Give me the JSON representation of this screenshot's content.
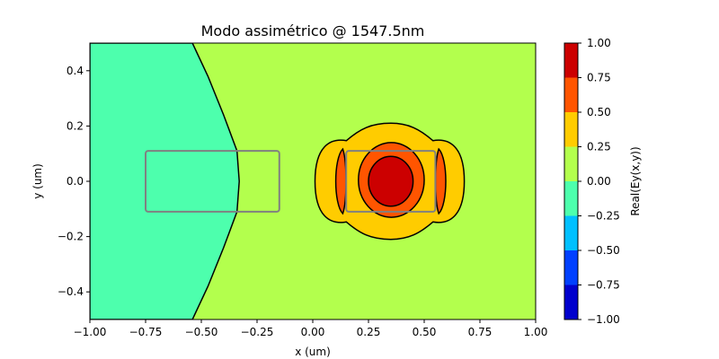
{
  "chart_data": {
    "type": "heatmap",
    "subtype": "filled-contour",
    "title": "Modo assimétrico @ 1547.5nm",
    "xlabel": "x (um)",
    "ylabel": "y (um)",
    "xlim": [
      -1.0,
      1.0
    ],
    "ylim": [
      -0.5,
      0.5
    ],
    "xticks": [
      "−1.00",
      "−0.75",
      "−0.50",
      "−0.25",
      "0.00",
      "0.25",
      "0.50",
      "0.75",
      "1.00"
    ],
    "xtick_values": [
      -1.0,
      -0.75,
      -0.5,
      -0.25,
      0.0,
      0.25,
      0.5,
      0.75,
      1.0
    ],
    "yticks": [
      "−0.4",
      "−0.2",
      "0.0",
      "0.2",
      "0.4"
    ],
    "ytick_values": [
      -0.4,
      -0.2,
      0.0,
      0.2,
      0.4
    ],
    "colorbar": {
      "label": "Real(Ey(x,y))",
      "levels": [
        -1.0,
        -0.75,
        -0.5,
        -0.25,
        0.0,
        0.25,
        0.5,
        0.75,
        1.0
      ],
      "tick_labels": [
        "−1.00",
        "−0.75",
        "−0.50",
        "−0.25",
        "0.00",
        "0.25",
        "0.50",
        "0.75",
        "1.00"
      ],
      "colors": [
        "#0000cd",
        "#0040ff",
        "#00c0ff",
        "#4dffad",
        "#b3ff4d",
        "#ffcc00",
        "#ff5500",
        "#cc0000"
      ]
    },
    "background_color": "#b3ff4d",
    "regions": [
      {
        "name": "left-negative-region",
        "level_range": [
          -0.25,
          0.0
        ],
        "color": "#4dffad",
        "boundary": [
          [
            -0.54,
            0.5
          ],
          [
            -0.47,
            0.38
          ],
          [
            -0.4,
            0.24
          ],
          [
            -0.34,
            0.11
          ],
          [
            -0.33,
            0.0
          ],
          [
            -0.34,
            -0.11
          ],
          [
            -0.4,
            -0.24
          ],
          [
            -0.47,
            -0.38
          ],
          [
            -0.54,
            -0.5
          ]
        ]
      },
      {
        "name": "outer-lobe",
        "level_range": [
          0.25,
          0.5
        ],
        "color": "#ffcc00",
        "center": [
          0.35,
          0.0
        ],
        "extent_x": [
          0.01,
          0.68
        ],
        "extent_y": [
          -0.21,
          0.21
        ]
      },
      {
        "name": "side-lobes",
        "level_range": [
          0.5,
          0.75
        ],
        "color": "#ff5500",
        "centers": [
          [
            0.125,
            0.0
          ],
          [
            0.575,
            0.0
          ]
        ]
      },
      {
        "name": "core-ring",
        "level_range": [
          0.5,
          0.75
        ],
        "color": "#ff5500",
        "center": [
          0.35,
          0.0
        ],
        "extent_x": [
          0.205,
          0.5
        ],
        "extent_y": [
          -0.13,
          0.14
        ]
      },
      {
        "name": "core-peak",
        "level_range": [
          0.75,
          1.0
        ],
        "color": "#cc0000",
        "center": [
          0.35,
          0.0
        ],
        "extent_x": [
          0.25,
          0.45
        ],
        "extent_y": [
          -0.09,
          0.09
        ]
      }
    ],
    "waveguides": [
      {
        "name": "left-waveguide",
        "x": [
          -0.75,
          -0.15
        ],
        "y": [
          -0.11,
          0.11
        ],
        "color": "#808080"
      },
      {
        "name": "right-waveguide",
        "x": [
          0.15,
          0.55
        ],
        "y": [
          -0.11,
          0.11
        ],
        "color": "#808080"
      }
    ]
  }
}
